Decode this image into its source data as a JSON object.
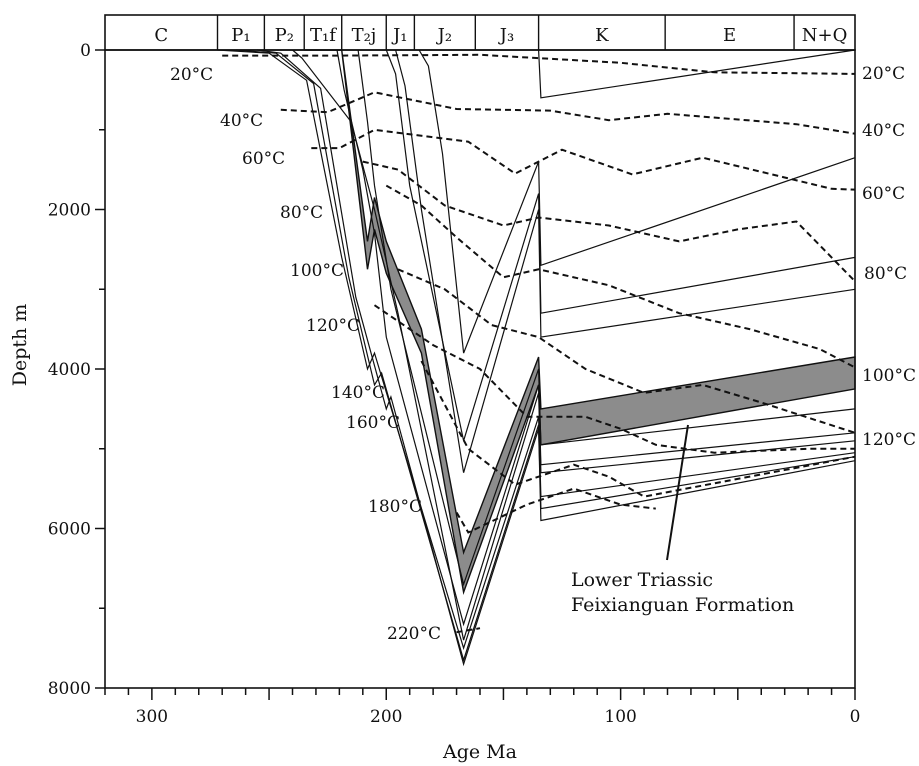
{
  "chart_data": {
    "type": "line",
    "title": "",
    "xlabel": "Age Ma",
    "ylabel": "Depth m",
    "xlim": [
      320,
      0
    ],
    "ylim": [
      0,
      8000
    ],
    "x_ticks": [
      300,
      200,
      100,
      0
    ],
    "y_ticks": [
      0,
      2000,
      4000,
      6000,
      8000
    ],
    "periods": [
      {
        "label": "C",
        "start": 320,
        "end": 272
      },
      {
        "label": "P₁",
        "start": 272,
        "end": 252
      },
      {
        "label": "P₂",
        "start": 252,
        "end": 235
      },
      {
        "label": "T₁f",
        "start": 235,
        "end": 219
      },
      {
        "label": "T₂j",
        "start": 219,
        "end": 200
      },
      {
        "label": "J₁",
        "start": 200,
        "end": 188
      },
      {
        "label": "J₂",
        "start": 188,
        "end": 162
      },
      {
        "label": "J₃",
        "start": 162,
        "end": 135
      },
      {
        "label": "K",
        "start": 135,
        "end": 81
      },
      {
        "label": "E",
        "start": 81,
        "end": 26
      },
      {
        "label": "N+Q",
        "start": 26,
        "end": 0
      }
    ],
    "burial_curves": [
      {
        "x": [
          272,
          250,
          234,
          219,
          208,
          205,
          167,
          135,
          134,
          0
        ],
        "y": [
          0,
          40,
          380,
          2600,
          4000,
          3800,
          7500,
          4600,
          5600,
          5050
        ]
      },
      {
        "x": [
          264,
          247,
          231,
          216,
          205,
          202,
          167,
          135,
          134,
          0
        ],
        "y": [
          0,
          40,
          420,
          2850,
          4200,
          4050,
          7650,
          4700,
          5750,
          5100
        ]
      },
      {
        "x": [
          255,
          245,
          228,
          213,
          200,
          198,
          167,
          135,
          134,
          0
        ],
        "y": [
          0,
          40,
          480,
          3100,
          4500,
          4350,
          7700,
          4750,
          5900,
          5150
        ]
      },
      {
        "x": [
          240,
          236,
          215,
          205,
          195,
          167,
          135,
          134,
          0
        ],
        "y": [
          0,
          100,
          900,
          2000,
          3300,
          7400,
          4300,
          5300,
          4900
        ]
      },
      {
        "x": [
          221,
          218,
          210,
          205,
          200,
          167,
          135,
          134,
          0
        ],
        "y": [
          0,
          500,
          1500,
          2300,
          3600,
          7200,
          4200,
          5200,
          4800
        ]
      },
      {
        "x": [
          212,
          208,
          205,
          198,
          167,
          135,
          134,
          0
        ],
        "y": [
          0,
          900,
          1700,
          3000,
          6700,
          4000,
          4950,
          4500
        ]
      },
      {
        "x": [
          200,
          196,
          190,
          167,
          135,
          134,
          0
        ],
        "y": [
          0,
          300,
          1700,
          4900,
          1800,
          3300,
          2600
        ]
      },
      {
        "x": [
          196,
          192,
          185,
          167,
          135,
          134,
          0
        ],
        "y": [
          0,
          450,
          2000,
          5300,
          2000,
          3600,
          3000
        ]
      },
      {
        "x": [
          186,
          182,
          176,
          167,
          135,
          134,
          0
        ],
        "y": [
          0,
          200,
          1300,
          3800,
          1400,
          2700,
          1350
        ]
      },
      {
        "x": [
          135,
          134,
          0
        ],
        "y": [
          0,
          600,
          0
        ]
      }
    ],
    "feixianguan_formation": {
      "label": "Lower Triassic Feixianguan Formation",
      "top": {
        "x": [
          235,
          219,
          208,
          205,
          200,
          185,
          167,
          135,
          134,
          0
        ],
        "y": [
          0,
          0,
          2400,
          1850,
          2400,
          3500,
          6300,
          3850,
          4500,
          3850
        ]
      },
      "bottom": {
        "x": [
          235,
          219,
          208,
          205,
          200,
          185,
          167,
          135,
          134,
          0
        ],
        "y": [
          0,
          0,
          2750,
          2250,
          2800,
          3800,
          6800,
          4200,
          4950,
          4250
        ]
      },
      "fill_color": "#8c8c8c"
    },
    "isotherms": [
      {
        "label": "20°C",
        "x": [
          270,
          220,
          160,
          100,
          60,
          0
        ],
        "y": [
          70,
          70,
          60,
          160,
          280,
          300
        ]
      },
      {
        "label": "40°C",
        "x": [
          245,
          225,
          205,
          200,
          170,
          130,
          105,
          80,
          25,
          0
        ],
        "y": [
          750,
          780,
          530,
          560,
          740,
          760,
          880,
          800,
          930,
          1050
        ]
      },
      {
        "label": "60°C",
        "x": [
          232,
          220,
          205,
          165,
          145,
          125,
          95,
          65,
          10,
          0
        ],
        "y": [
          1230,
          1230,
          1000,
          1150,
          1550,
          1250,
          1560,
          1350,
          1740,
          1750
        ]
      },
      {
        "label": "80°C",
        "x": [
          210,
          195,
          175,
          150,
          135,
          105,
          75,
          50,
          25,
          0
        ],
        "y": [
          1400,
          1500,
          1950,
          2200,
          2100,
          2200,
          2400,
          2250,
          2150,
          2900
        ]
      },
      {
        "label": "100°C",
        "x": [
          200,
          185,
          170,
          150,
          135,
          105,
          75,
          45,
          15,
          0
        ],
        "y": [
          1700,
          1950,
          2350,
          2850,
          2750,
          2950,
          3300,
          3500,
          3750,
          3980
        ]
      },
      {
        "label": "120°C",
        "x": [
          195,
          175,
          155,
          135,
          115,
          90,
          65,
          40,
          0
        ],
        "y": [
          2750,
          3000,
          3450,
          3600,
          4000,
          4300,
          4200,
          4420,
          4800
        ]
      },
      {
        "label": "140°C",
        "x": [
          205,
          180,
          160,
          140,
          115,
          100,
          85,
          60,
          20,
          0
        ],
        "y": [
          3200,
          3700,
          4000,
          4600,
          4600,
          4750,
          4950,
          5050,
          5000,
          5000
        ]
      },
      {
        "label": "160°C",
        "x": [
          185,
          165,
          145,
          120,
          105,
          90,
          0
        ],
        "y": [
          3900,
          5000,
          5450,
          5200,
          5350,
          5600,
          5100
        ]
      },
      {
        "label": "180°C",
        "x": [
          170,
          165,
          140,
          120,
          100,
          85
        ],
        "y": [
          5800,
          6050,
          5700,
          5500,
          5700,
          5750
        ]
      },
      {
        "label": "220°C",
        "x": [
          170,
          160
        ],
        "y": [
          7300,
          7250
        ]
      }
    ],
    "grid": false,
    "legend": "none"
  }
}
